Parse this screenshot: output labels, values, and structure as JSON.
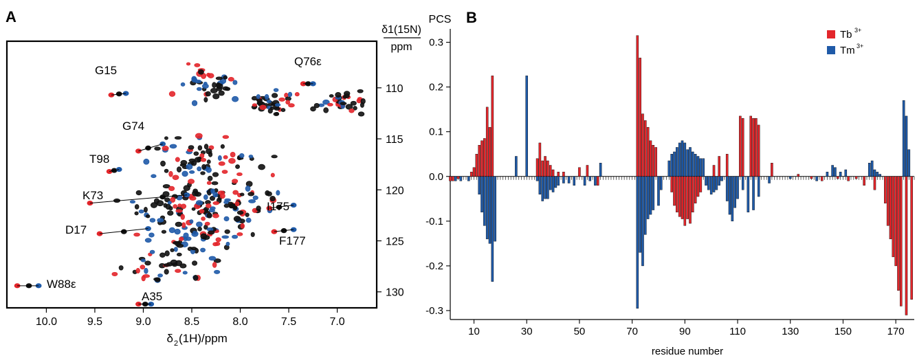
{
  "colors": {
    "tb": "#e3262b",
    "tm": "#1f5aa8",
    "peak_black": "#111111",
    "axis": "#000000"
  },
  "panel_a": {
    "label": "A",
    "chart_data": {
      "type": "scatter",
      "xlabel_main": "δ",
      "xlabel_sub": "2",
      "xlabel_rest": "(1H)/ppm",
      "ylabel_top": "δ1(15N)",
      "ylabel_bottom": "ppm",
      "x_ticks": [
        "10.0",
        "9.5",
        "9.0",
        "8.5",
        "8.0",
        "7.5",
        "7.0"
      ],
      "x_tick_values": [
        10.0,
        9.5,
        9.0,
        8.5,
        8.0,
        7.5,
        7.0
      ],
      "y_ticks": [
        "110",
        "115",
        "120",
        "125",
        "130"
      ],
      "y_tick_values": [
        110,
        115,
        120,
        125,
        130
      ],
      "xlim": [
        10.4,
        6.6
      ],
      "ylim": [
        105.5,
        131.5
      ],
      "annotations": [
        {
          "label": "G15",
          "x": 9.33,
          "y": 110.5
        },
        {
          "label": "Q76ε",
          "x": 7.2,
          "y": 109.6
        },
        {
          "label": "G74",
          "x": 9.15,
          "y": 115.6
        },
        {
          "label": "T98",
          "x": 9.55,
          "y": 118.1
        },
        {
          "label": "K73",
          "x": 9.55,
          "y": 121.2
        },
        {
          "label": "I175",
          "x": 7.65,
          "y": 122.4
        },
        {
          "label": "D17",
          "x": 9.68,
          "y": 124.3
        },
        {
          "label": "F177",
          "x": 7.55,
          "y": 125.6
        },
        {
          "label": "W88ε",
          "x": 9.85,
          "y": 129.7
        },
        {
          "label": "A35",
          "x": 8.85,
          "y": 131.2
        }
      ]
    }
  },
  "panel_b": {
    "label": "B",
    "chart_data": {
      "type": "bar",
      "ylabel": "PCS",
      "xlabel": "residue number",
      "ylim": [
        -0.32,
        0.33
      ],
      "xlim": [
        1,
        177
      ],
      "x_ticks": [
        "10",
        "30",
        "50",
        "70",
        "90",
        "110",
        "130",
        "150",
        "170"
      ],
      "y_ticks": [
        "0.3",
        "0.2",
        "0.1",
        "0.0",
        "-0.1",
        "-0.2",
        "-0.3"
      ],
      "legend": [
        {
          "name": "Tb3+",
          "base": "Tb",
          "sup": "3+",
          "color": "#e3262b"
        },
        {
          "name": "Tm3+",
          "base": "Tm",
          "sup": "3+",
          "color": "#1f5aa8"
        }
      ],
      "series": [
        {
          "name": "Tb3+",
          "points": [
            [
              1,
              -0.01
            ],
            [
              2,
              -0.01
            ],
            [
              4,
              -0.005
            ],
            [
              9,
              0.01
            ],
            [
              10,
              0.02
            ],
            [
              11,
              0.05
            ],
            [
              12,
              0.07
            ],
            [
              13,
              0.08
            ],
            [
              14,
              0.085
            ],
            [
              15,
              0.155
            ],
            [
              16,
              0.11
            ],
            [
              17,
              0.225
            ],
            [
              34,
              0.04
            ],
            [
              35,
              0.075
            ],
            [
              36,
              0.035
            ],
            [
              37,
              0.045
            ],
            [
              38,
              0.035
            ],
            [
              39,
              0.025
            ],
            [
              40,
              0.015
            ],
            [
              42,
              0.01
            ],
            [
              44,
              0.01
            ],
            [
              50,
              0.02
            ],
            [
              53,
              0.025
            ],
            [
              57,
              -0.02
            ],
            [
              72,
              0.315
            ],
            [
              73,
              0.265
            ],
            [
              74,
              0.14
            ],
            [
              75,
              0.125
            ],
            [
              76,
              0.11
            ],
            [
              77,
              0.08
            ],
            [
              78,
              0.07
            ],
            [
              79,
              0.065
            ],
            [
              85,
              -0.035
            ],
            [
              86,
              -0.065
            ],
            [
              87,
              -0.08
            ],
            [
              88,
              -0.09
            ],
            [
              89,
              -0.095
            ],
            [
              90,
              -0.11
            ],
            [
              91,
              -0.095
            ],
            [
              92,
              -0.105
            ],
            [
              93,
              -0.08
            ],
            [
              94,
              -0.06
            ],
            [
              95,
              -0.045
            ],
            [
              96,
              -0.035
            ],
            [
              101,
              0.025
            ],
            [
              103,
              0.045
            ],
            [
              106,
              0.05
            ],
            [
              111,
              0.135
            ],
            [
              112,
              0.13
            ],
            [
              115,
              0.135
            ],
            [
              116,
              0.13
            ],
            [
              117,
              0.13
            ],
            [
              118,
              0.115
            ],
            [
              123,
              0.03
            ],
            [
              133,
              0.005
            ],
            [
              138,
              -0.005
            ],
            [
              142,
              -0.01
            ],
            [
              148,
              -0.005
            ],
            [
              152,
              -0.01
            ],
            [
              155,
              -0.005
            ],
            [
              158,
              -0.02
            ],
            [
              162,
              -0.03
            ],
            [
              166,
              -0.06
            ],
            [
              167,
              -0.11
            ],
            [
              168,
              -0.14
            ],
            [
              169,
              -0.18
            ],
            [
              170,
              -0.2
            ],
            [
              171,
              -0.255
            ],
            [
              172,
              -0.29
            ],
            [
              174,
              -0.31
            ],
            [
              176,
              -0.275
            ]
          ]
        },
        {
          "name": "Tm3+",
          "points": [
            [
              3,
              -0.01
            ],
            [
              5,
              -0.01
            ],
            [
              8,
              -0.01
            ],
            [
              12,
              -0.04
            ],
            [
              13,
              -0.08
            ],
            [
              14,
              -0.11
            ],
            [
              15,
              -0.14
            ],
            [
              16,
              -0.15
            ],
            [
              17,
              -0.235
            ],
            [
              18,
              -0.145
            ],
            [
              26,
              0.045
            ],
            [
              30,
              0.225
            ],
            [
              34,
              -0.01
            ],
            [
              35,
              -0.04
            ],
            [
              36,
              -0.055
            ],
            [
              37,
              -0.05
            ],
            [
              38,
              -0.05
            ],
            [
              39,
              -0.03
            ],
            [
              40,
              -0.035
            ],
            [
              41,
              -0.025
            ],
            [
              42,
              -0.02
            ],
            [
              44,
              -0.015
            ],
            [
              46,
              -0.015
            ],
            [
              48,
              -0.02
            ],
            [
              52,
              -0.02
            ],
            [
              54,
              -0.01
            ],
            [
              56,
              -0.02
            ],
            [
              58,
              0.03
            ],
            [
              72,
              -0.295
            ],
            [
              73,
              -0.17
            ],
            [
              74,
              -0.2
            ],
            [
              75,
              -0.13
            ],
            [
              76,
              -0.095
            ],
            [
              77,
              -0.085
            ],
            [
              78,
              -0.075
            ],
            [
              80,
              -0.065
            ],
            [
              81,
              -0.03
            ],
            [
              84,
              0.035
            ],
            [
              85,
              0.05
            ],
            [
              86,
              0.055
            ],
            [
              87,
              0.065
            ],
            [
              88,
              0.075
            ],
            [
              89,
              0.08
            ],
            [
              90,
              0.075
            ],
            [
              91,
              0.06
            ],
            [
              92,
              0.065
            ],
            [
              93,
              0.055
            ],
            [
              94,
              0.05
            ],
            [
              95,
              0.045
            ],
            [
              96,
              0.04
            ],
            [
              97,
              0.04
            ],
            [
              98,
              -0.02
            ],
            [
              99,
              -0.03
            ],
            [
              100,
              -0.04
            ],
            [
              101,
              -0.035
            ],
            [
              102,
              -0.03
            ],
            [
              103,
              -0.02
            ],
            [
              104,
              -0.01
            ],
            [
              106,
              -0.055
            ],
            [
              107,
              -0.085
            ],
            [
              108,
              -0.1
            ],
            [
              109,
              -0.07
            ],
            [
              110,
              -0.05
            ],
            [
              112,
              -0.03
            ],
            [
              114,
              -0.08
            ],
            [
              116,
              -0.075
            ],
            [
              118,
              -0.045
            ],
            [
              122,
              -0.015
            ],
            [
              130,
              -0.005
            ],
            [
              140,
              -0.01
            ],
            [
              144,
              0.01
            ],
            [
              146,
              0.025
            ],
            [
              147,
              0.02
            ],
            [
              149,
              0.01
            ],
            [
              151,
              0.015
            ],
            [
              160,
              0.03
            ],
            [
              161,
              0.035
            ],
            [
              162,
              0.015
            ],
            [
              163,
              0.01
            ],
            [
              164,
              0.005
            ],
            [
              173,
              0.17
            ],
            [
              174,
              0.135
            ],
            [
              175,
              0.06
            ]
          ]
        }
      ]
    }
  }
}
